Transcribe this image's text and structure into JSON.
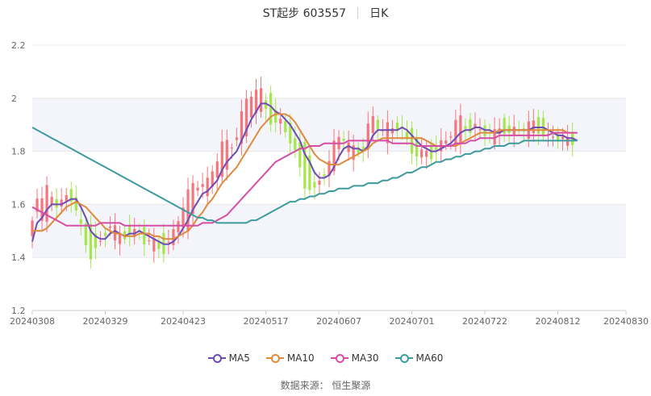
{
  "header": {
    "title": "ST起步 603557",
    "period": "日K"
  },
  "source": "数据来源： 恒生聚源",
  "colors": {
    "up": "#f4767c",
    "down": "#a6e64c",
    "grid": "#e8e8e8",
    "band": "#f3f5fa",
    "axis": "#999999"
  },
  "chart_data": {
    "type": "candlestick",
    "y_ticks": [
      "1.2",
      "1.4",
      "1.6",
      "1.8",
      "2",
      "2.2"
    ],
    "ylim": [
      1.2,
      2.2
    ],
    "x_ticks": [
      {
        "label": "20240308",
        "i": 0
      },
      {
        "label": "20240329",
        "i": 15
      },
      {
        "label": "20240423",
        "i": 31
      },
      {
        "label": "20240517",
        "i": 48
      },
      {
        "label": "20240607",
        "i": 63
      },
      {
        "label": "20240701",
        "i": 78
      },
      {
        "label": "20240722",
        "i": 93
      },
      {
        "label": "20240812",
        "i": 108
      },
      {
        "label": "20240830",
        "i": 122
      }
    ],
    "count": 123,
    "series": [
      {
        "name": "MA5",
        "color": "#6d4bb4",
        "values": [
          1.46,
          1.53,
          1.55,
          1.58,
          1.6,
          1.6,
          1.6,
          1.61,
          1.62,
          1.62,
          1.59,
          1.55,
          1.5,
          1.48,
          1.47,
          1.47,
          1.49,
          1.5,
          1.49,
          1.48,
          1.49,
          1.49,
          1.5,
          1.49,
          1.48,
          1.47,
          1.46,
          1.45,
          1.45,
          1.46,
          1.48,
          1.51,
          1.54,
          1.58,
          1.61,
          1.64,
          1.65,
          1.67,
          1.69,
          1.73,
          1.76,
          1.78,
          1.8,
          1.84,
          1.88,
          1.92,
          1.95,
          1.98,
          1.98,
          1.97,
          1.95,
          1.94,
          1.92,
          1.9,
          1.87,
          1.84,
          1.79,
          1.76,
          1.72,
          1.7,
          1.7,
          1.71,
          1.74,
          1.78,
          1.81,
          1.82,
          1.81,
          1.81,
          1.8,
          1.82,
          1.86,
          1.88,
          1.88,
          1.88,
          1.88,
          1.88,
          1.89,
          1.88,
          1.86,
          1.84,
          1.82,
          1.81,
          1.8,
          1.8,
          1.81,
          1.82,
          1.83,
          1.85,
          1.87,
          1.88,
          1.88,
          1.89,
          1.89,
          1.88,
          1.88,
          1.87,
          1.87,
          1.88,
          1.88,
          1.88,
          1.88,
          1.88,
          1.88,
          1.89,
          1.89,
          1.89,
          1.88,
          1.87,
          1.86,
          1.86,
          1.85,
          1.85,
          1.84
        ]
      },
      {
        "name": "MA10",
        "color": "#e08a3c",
        "values": [
          1.5,
          1.5,
          1.5,
          1.51,
          1.53,
          1.55,
          1.57,
          1.59,
          1.6,
          1.61,
          1.6,
          1.59,
          1.57,
          1.55,
          1.53,
          1.51,
          1.5,
          1.49,
          1.49,
          1.48,
          1.48,
          1.48,
          1.49,
          1.49,
          1.49,
          1.48,
          1.48,
          1.47,
          1.47,
          1.47,
          1.48,
          1.49,
          1.5,
          1.52,
          1.55,
          1.57,
          1.6,
          1.62,
          1.65,
          1.68,
          1.7,
          1.72,
          1.74,
          1.77,
          1.8,
          1.83,
          1.86,
          1.89,
          1.91,
          1.93,
          1.94,
          1.94,
          1.94,
          1.93,
          1.91,
          1.88,
          1.85,
          1.82,
          1.79,
          1.77,
          1.76,
          1.75,
          1.75,
          1.75,
          1.76,
          1.77,
          1.78,
          1.79,
          1.8,
          1.81,
          1.83,
          1.84,
          1.85,
          1.85,
          1.85,
          1.85,
          1.85,
          1.85,
          1.85,
          1.85,
          1.85,
          1.84,
          1.83,
          1.82,
          1.82,
          1.82,
          1.82,
          1.82,
          1.83,
          1.84,
          1.85,
          1.86,
          1.87,
          1.87,
          1.87,
          1.87,
          1.88,
          1.88,
          1.88,
          1.88,
          1.88,
          1.88,
          1.88,
          1.88,
          1.88,
          1.88,
          1.88,
          1.88,
          1.88,
          1.88,
          1.87,
          1.87,
          1.87
        ]
      },
      {
        "name": "MA30",
        "color": "#d64da5",
        "values": [
          1.59,
          1.58,
          1.57,
          1.56,
          1.55,
          1.54,
          1.53,
          1.52,
          1.52,
          1.52,
          1.52,
          1.52,
          1.52,
          1.52,
          1.53,
          1.53,
          1.53,
          1.53,
          1.53,
          1.52,
          1.52,
          1.52,
          1.52,
          1.52,
          1.52,
          1.52,
          1.52,
          1.52,
          1.52,
          1.52,
          1.52,
          1.52,
          1.52,
          1.52,
          1.52,
          1.53,
          1.53,
          1.53,
          1.54,
          1.55,
          1.56,
          1.58,
          1.6,
          1.62,
          1.64,
          1.66,
          1.68,
          1.7,
          1.72,
          1.74,
          1.76,
          1.77,
          1.78,
          1.79,
          1.8,
          1.81,
          1.81,
          1.82,
          1.82,
          1.82,
          1.83,
          1.83,
          1.83,
          1.83,
          1.83,
          1.84,
          1.84,
          1.84,
          1.84,
          1.84,
          1.84,
          1.84,
          1.84,
          1.84,
          1.83,
          1.83,
          1.83,
          1.83,
          1.83,
          1.82,
          1.82,
          1.82,
          1.82,
          1.82,
          1.82,
          1.82,
          1.82,
          1.83,
          1.83,
          1.83,
          1.84,
          1.84,
          1.85,
          1.85,
          1.85,
          1.85,
          1.86,
          1.86,
          1.86,
          1.86,
          1.86,
          1.86,
          1.86,
          1.86,
          1.86,
          1.86,
          1.86,
          1.87,
          1.87,
          1.87,
          1.87,
          1.87,
          1.87
        ]
      },
      {
        "name": "MA60",
        "color": "#3d9a9e",
        "values": [
          1.89,
          1.88,
          1.87,
          1.86,
          1.85,
          1.84,
          1.83,
          1.82,
          1.81,
          1.8,
          1.79,
          1.78,
          1.77,
          1.76,
          1.75,
          1.74,
          1.73,
          1.72,
          1.71,
          1.7,
          1.69,
          1.68,
          1.67,
          1.66,
          1.65,
          1.64,
          1.63,
          1.62,
          1.61,
          1.6,
          1.59,
          1.58,
          1.57,
          1.56,
          1.55,
          1.55,
          1.54,
          1.54,
          1.53,
          1.53,
          1.53,
          1.53,
          1.53,
          1.53,
          1.53,
          1.54,
          1.54,
          1.55,
          1.56,
          1.57,
          1.58,
          1.59,
          1.6,
          1.61,
          1.61,
          1.62,
          1.62,
          1.63,
          1.63,
          1.64,
          1.64,
          1.65,
          1.65,
          1.66,
          1.66,
          1.66,
          1.67,
          1.67,
          1.67,
          1.68,
          1.68,
          1.68,
          1.69,
          1.69,
          1.7,
          1.7,
          1.71,
          1.72,
          1.72,
          1.73,
          1.74,
          1.74,
          1.75,
          1.76,
          1.76,
          1.77,
          1.77,
          1.78,
          1.78,
          1.79,
          1.79,
          1.8,
          1.8,
          1.81,
          1.81,
          1.82,
          1.82,
          1.82,
          1.83,
          1.83,
          1.83,
          1.84,
          1.84,
          1.84,
          1.84,
          1.84,
          1.84,
          1.84,
          1.84,
          1.84,
          1.84,
          1.84,
          1.84
        ]
      }
    ]
  }
}
